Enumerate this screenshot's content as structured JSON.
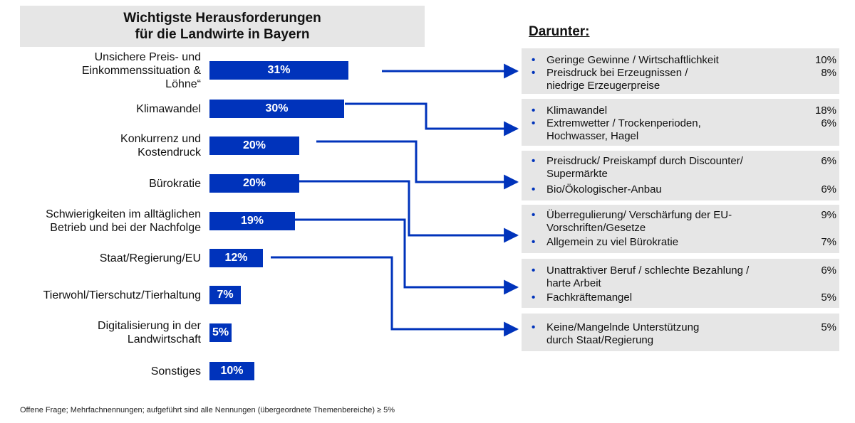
{
  "title": [
    "Wichtigste Herausforderungen",
    "für die Landwirte in Bayern"
  ],
  "darunter_label": "Darunter:",
  "footnote": "Offene Frage; Mehrfachnennungen; aufgeführt sind alle Nennungen (übergeordnete Themenbereiche) ≥ 5%",
  "colors": {
    "bar": "#0033bb",
    "arrow": "#0033bb",
    "box": "#e6e6e6"
  },
  "chart_data": {
    "type": "bar",
    "orientation": "horizontal",
    "categories": [
      [
        "Unsichere Preis- und",
        "Einkommenssituation &",
        "Löhne“"
      ],
      [
        "Klimawandel"
      ],
      [
        "Konkurrenz und",
        "Kostendruck"
      ],
      [
        "Bürokratie"
      ],
      [
        "Schwierigkeiten im alltäglichen",
        "Betrieb und bei der Nachfolge"
      ],
      [
        "Staat/Regierung/EU"
      ],
      [
        "Tierwohl/Tierschutz/Tierhaltung"
      ],
      [
        "Digitalisierung in der",
        "Landwirtschaft"
      ],
      [
        "Sonstiges"
      ]
    ],
    "values": [
      31,
      30,
      20,
      20,
      19,
      12,
      7,
      5,
      10
    ],
    "value_labels": [
      "31%",
      "30%",
      "20%",
      "20%",
      "19%",
      "12%",
      "7%",
      "5%",
      "10%"
    ],
    "unit": "%"
  },
  "details": [
    {
      "items": [
        {
          "text": [
            "Geringe Gewinne / Wirtschaftlichkeit"
          ],
          "pct": "10%"
        },
        {
          "text": [
            "Preisdruck bei Erzeugnissen /",
            "niedrige Erzeugerpreise"
          ],
          "pct": "8%"
        }
      ]
    },
    {
      "items": [
        {
          "text": [
            "Klimawandel"
          ],
          "pct": "18%"
        },
        {
          "text": [
            "Extremwetter / Trockenperioden,",
            "Hochwasser, Hagel"
          ],
          "pct": "6%"
        }
      ]
    },
    {
      "items": [
        {
          "text": [
            "Preisdruck/ Preiskampf durch Discounter/",
            "Supermärkte"
          ],
          "pct": "6%"
        },
        {
          "text": [
            "Bio/Ökologischer-Anbau"
          ],
          "pct": "6%"
        }
      ]
    },
    {
      "items": [
        {
          "text": [
            "Überregulierung/ Verschärfung der EU-",
            "Vorschriften/Gesetze"
          ],
          "pct": "9%"
        },
        {
          "text": [
            "Allgemein zu viel Bürokratie"
          ],
          "pct": "7%"
        }
      ]
    },
    {
      "items": [
        {
          "text": [
            "Unattraktiver Beruf / schlechte Bezahlung /",
            "harte Arbeit"
          ],
          "pct": "6%"
        },
        {
          "text": [
            "Fachkräftemangel"
          ],
          "pct": "5%"
        }
      ]
    },
    {
      "items": [
        {
          "text": [
            "Keine/Mangelnde Unterstützung",
            "durch Staat/Regierung"
          ],
          "pct": "5%"
        }
      ]
    }
  ]
}
